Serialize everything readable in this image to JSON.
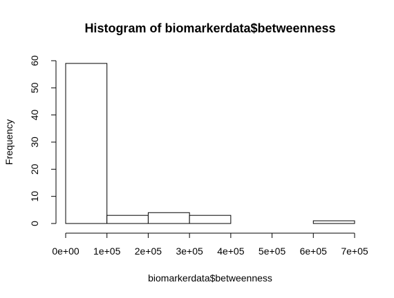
{
  "chart_data": {
    "type": "bar",
    "title": "Histogram of biomarkerdata$betweenness",
    "xlabel": "biomarkerdata$betweenness",
    "ylabel": "Frequency",
    "bins": [
      {
        "start": 0,
        "end": 100000,
        "count": 59
      },
      {
        "start": 100000,
        "end": 200000,
        "count": 3
      },
      {
        "start": 200000,
        "end": 300000,
        "count": 4
      },
      {
        "start": 300000,
        "end": 400000,
        "count": 3
      },
      {
        "start": 400000,
        "end": 500000,
        "count": 0
      },
      {
        "start": 500000,
        "end": 600000,
        "count": 0
      },
      {
        "start": 600000,
        "end": 700000,
        "count": 1
      }
    ],
    "xlim": [
      0,
      700000
    ],
    "ylim": [
      0,
      60
    ],
    "x_ticks": [
      {
        "value": 0,
        "label": "0e+00"
      },
      {
        "value": 100000,
        "label": "1e+05"
      },
      {
        "value": 200000,
        "label": "2e+05"
      },
      {
        "value": 300000,
        "label": "3e+05"
      },
      {
        "value": 400000,
        "label": "4e+05"
      },
      {
        "value": 500000,
        "label": "5e+05"
      },
      {
        "value": 600000,
        "label": "6e+05"
      },
      {
        "value": 700000,
        "label": "7e+05"
      }
    ],
    "y_ticks": [
      {
        "value": 0,
        "label": "0"
      },
      {
        "value": 10,
        "label": "10"
      },
      {
        "value": 20,
        "label": "20"
      },
      {
        "value": 30,
        "label": "30"
      },
      {
        "value": 40,
        "label": "40"
      },
      {
        "value": 50,
        "label": "50"
      },
      {
        "value": 60,
        "label": "60"
      }
    ],
    "grid": false,
    "bar_fill": "#ffffff",
    "bar_stroke": "#000000"
  }
}
